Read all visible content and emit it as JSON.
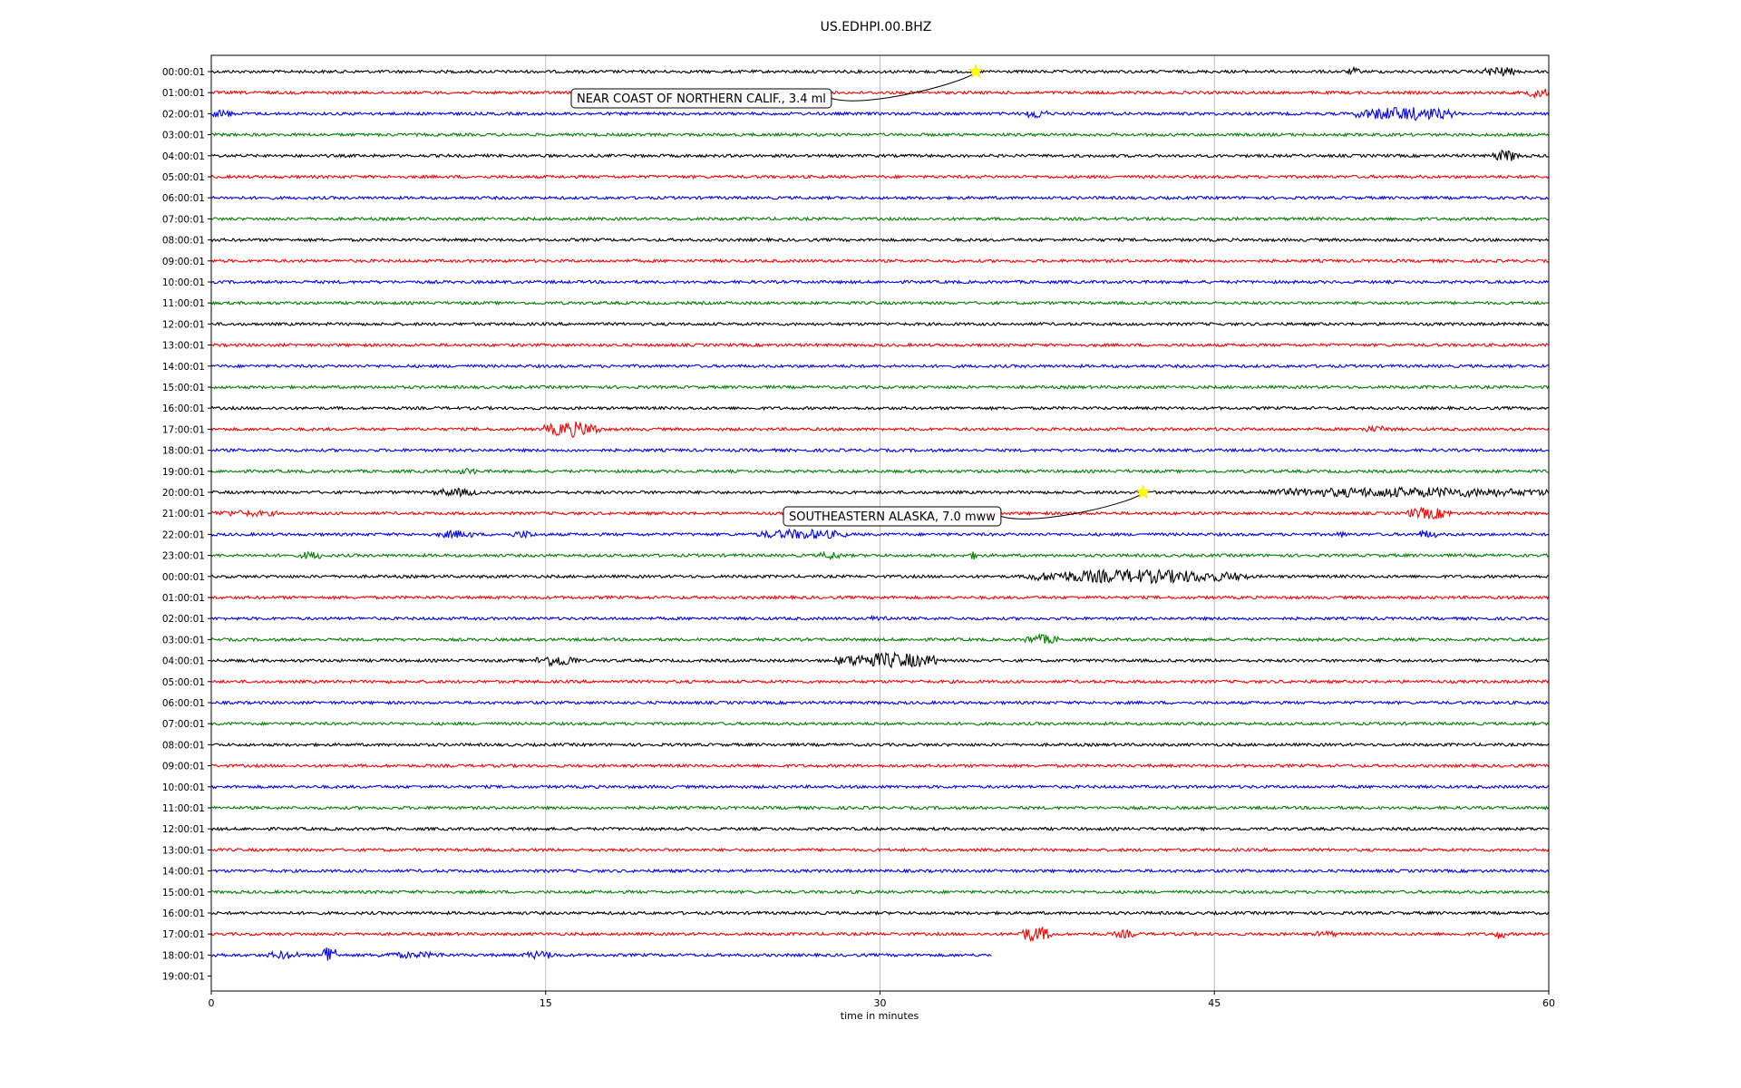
{
  "chart_data": {
    "type": "line",
    "title": "US.EDHPI.00.BHZ",
    "xlabel": "time in minutes",
    "xlim": [
      0,
      60
    ],
    "x_ticks": [
      "0",
      "15",
      "30",
      "45",
      "60"
    ],
    "grid": "vertical",
    "trace_colors": [
      "#000000",
      "#ff0000",
      "#0000ff",
      "#008000"
    ],
    "row_labels": [
      "00:00:01",
      "01:00:01",
      "02:00:01",
      "03:00:01",
      "04:00:01",
      "05:00:01",
      "06:00:01",
      "07:00:01",
      "08:00:01",
      "09:00:01",
      "10:00:01",
      "11:00:01",
      "12:00:01",
      "13:00:01",
      "14:00:01",
      "15:00:01",
      "16:00:01",
      "17:00:01",
      "18:00:01",
      "19:00:01",
      "20:00:01",
      "21:00:01",
      "22:00:01",
      "23:00:01",
      "00:00:01",
      "01:00:01",
      "02:00:01",
      "03:00:01",
      "04:00:01",
      "05:00:01",
      "06:00:01",
      "07:00:01",
      "08:00:01",
      "09:00:01",
      "10:00:01",
      "11:00:01",
      "12:00:01",
      "13:00:01",
      "14:00:01",
      "15:00:01",
      "16:00:01",
      "17:00:01",
      "18:00:01",
      "19:00:01"
    ],
    "last_trace_end_minutes": 35,
    "events": [
      {
        "label": "NEAR COAST OF NORTHERN CALIF., 3.4 ml",
        "row": 0,
        "minute": 34.3,
        "marker_color": "#ffff00"
      },
      {
        "label": "SOUTHEASTERN ALASKA, 7.0 mww",
        "row": 20,
        "minute": 41.8,
        "marker_color": "#ffff00"
      }
    ],
    "bursts": [
      {
        "row": 0,
        "minute": 51.0,
        "duration": 0.5,
        "amplitude": 3
      },
      {
        "row": 0,
        "minute": 57.0,
        "duration": 1.5,
        "amplitude": 4
      },
      {
        "row": 1,
        "minute": 59.0,
        "duration": 1.0,
        "amplitude": 4
      },
      {
        "row": 2,
        "minute": 0.0,
        "duration": 1.0,
        "amplitude": 3
      },
      {
        "row": 2,
        "minute": 36.5,
        "duration": 1.0,
        "amplitude": 4
      },
      {
        "row": 2,
        "minute": 51.3,
        "duration": 4.5,
        "amplitude": 6
      },
      {
        "row": 4,
        "minute": 57.5,
        "duration": 1.2,
        "amplitude": 5
      },
      {
        "row": 17,
        "minute": 14.9,
        "duration": 2.6,
        "amplitude": 7
      },
      {
        "row": 17,
        "minute": 51.5,
        "duration": 1.5,
        "amplitude": 2
      },
      {
        "row": 19,
        "minute": 11.0,
        "duration": 1.0,
        "amplitude": 2
      },
      {
        "row": 20,
        "minute": 10.0,
        "duration": 2.0,
        "amplitude": 3
      },
      {
        "row": 20,
        "minute": 47.0,
        "duration": 13.0,
        "amplitude": 4
      },
      {
        "row": 21,
        "minute": 0.0,
        "duration": 3.0,
        "amplitude": 2
      },
      {
        "row": 21,
        "minute": 53.6,
        "duration": 2.0,
        "amplitude": 5
      },
      {
        "row": 22,
        "minute": 10.2,
        "duration": 1.6,
        "amplitude": 3
      },
      {
        "row": 22,
        "minute": 13.5,
        "duration": 1.0,
        "amplitude": 3
      },
      {
        "row": 22,
        "minute": 24.5,
        "duration": 4.0,
        "amplitude": 4
      },
      {
        "row": 22,
        "minute": 50.5,
        "duration": 0.5,
        "amplitude": 2
      },
      {
        "row": 22,
        "minute": 54.0,
        "duration": 1.0,
        "amplitude": 3
      },
      {
        "row": 23,
        "minute": 4.0,
        "duration": 1.0,
        "amplitude": 3
      },
      {
        "row": 23,
        "minute": 27.3,
        "duration": 1.0,
        "amplitude": 3
      },
      {
        "row": 23,
        "minute": 34.0,
        "duration": 0.5,
        "amplitude": 3
      },
      {
        "row": 24,
        "minute": 36.5,
        "duration": 10.0,
        "amplitude": 6
      },
      {
        "row": 26,
        "minute": 29.5,
        "duration": 1.0,
        "amplitude": 2
      },
      {
        "row": 27,
        "minute": 36.5,
        "duration": 1.5,
        "amplitude": 4
      },
      {
        "row": 28,
        "minute": 14.5,
        "duration": 2.0,
        "amplitude": 5
      },
      {
        "row": 28,
        "minute": 28.0,
        "duration": 4.8,
        "amplitude": 7
      },
      {
        "row": 41,
        "minute": 36.2,
        "duration": 1.5,
        "amplitude": 7
      },
      {
        "row": 41,
        "minute": 40.5,
        "duration": 1.0,
        "amplitude": 3
      },
      {
        "row": 41,
        "minute": 49.5,
        "duration": 1.0,
        "amplitude": 2
      },
      {
        "row": 41,
        "minute": 57.5,
        "duration": 0.6,
        "amplitude": 4
      },
      {
        "row": 42,
        "minute": 0.0,
        "duration": 0.5,
        "amplitude": 2
      },
      {
        "row": 42,
        "minute": 2.5,
        "duration": 1.5,
        "amplitude": 3
      },
      {
        "row": 42,
        "minute": 5.0,
        "duration": 0.6,
        "amplitude": 12
      },
      {
        "row": 42,
        "minute": 7.5,
        "duration": 3.0,
        "amplitude": 2
      },
      {
        "row": 42,
        "minute": 14.0,
        "duration": 1.5,
        "amplitude": 3
      }
    ]
  }
}
